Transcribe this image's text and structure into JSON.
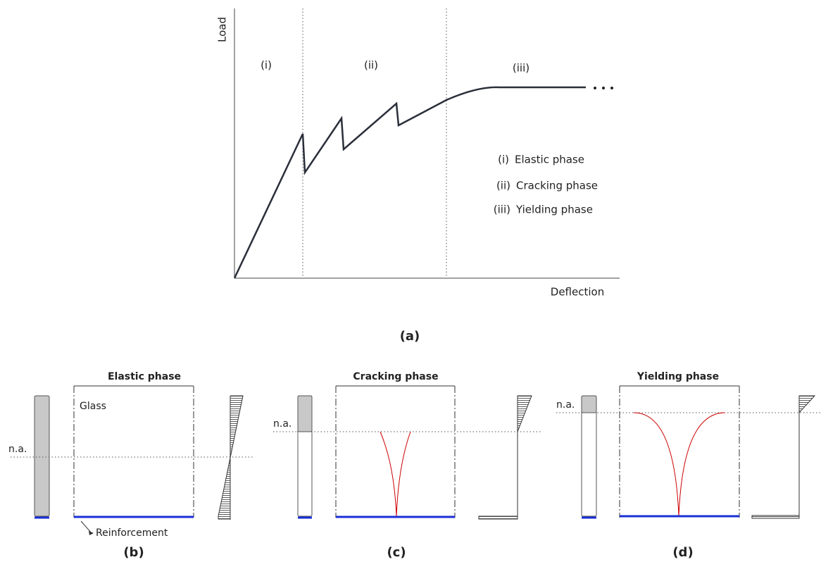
{
  "panel_a": {
    "y_axis_label": "Load",
    "x_axis_label": "Deflection",
    "phase_labels": [
      "(i)",
      "(ii)",
      "(iii)"
    ],
    "legend": [
      {
        "key": "(i)",
        "text": "Elastic phase"
      },
      {
        "key": "(ii)",
        "text": "Cracking phase"
      },
      {
        "key": "(iii)",
        "text": "Yielding phase"
      }
    ],
    "caption": "(a)"
  },
  "panel_b": {
    "title": "Elastic phase",
    "material_label": "Glass",
    "neutral_axis_label": "n.a.",
    "reinforcement_label": "Reinforcement",
    "caption": "(b)"
  },
  "panel_c": {
    "title": "Cracking phase",
    "neutral_axis_label": "n.a.",
    "caption": "(c)"
  },
  "panel_d": {
    "title": "Yielding phase",
    "neutral_axis_label": "n.a.",
    "caption": "(d)"
  }
}
